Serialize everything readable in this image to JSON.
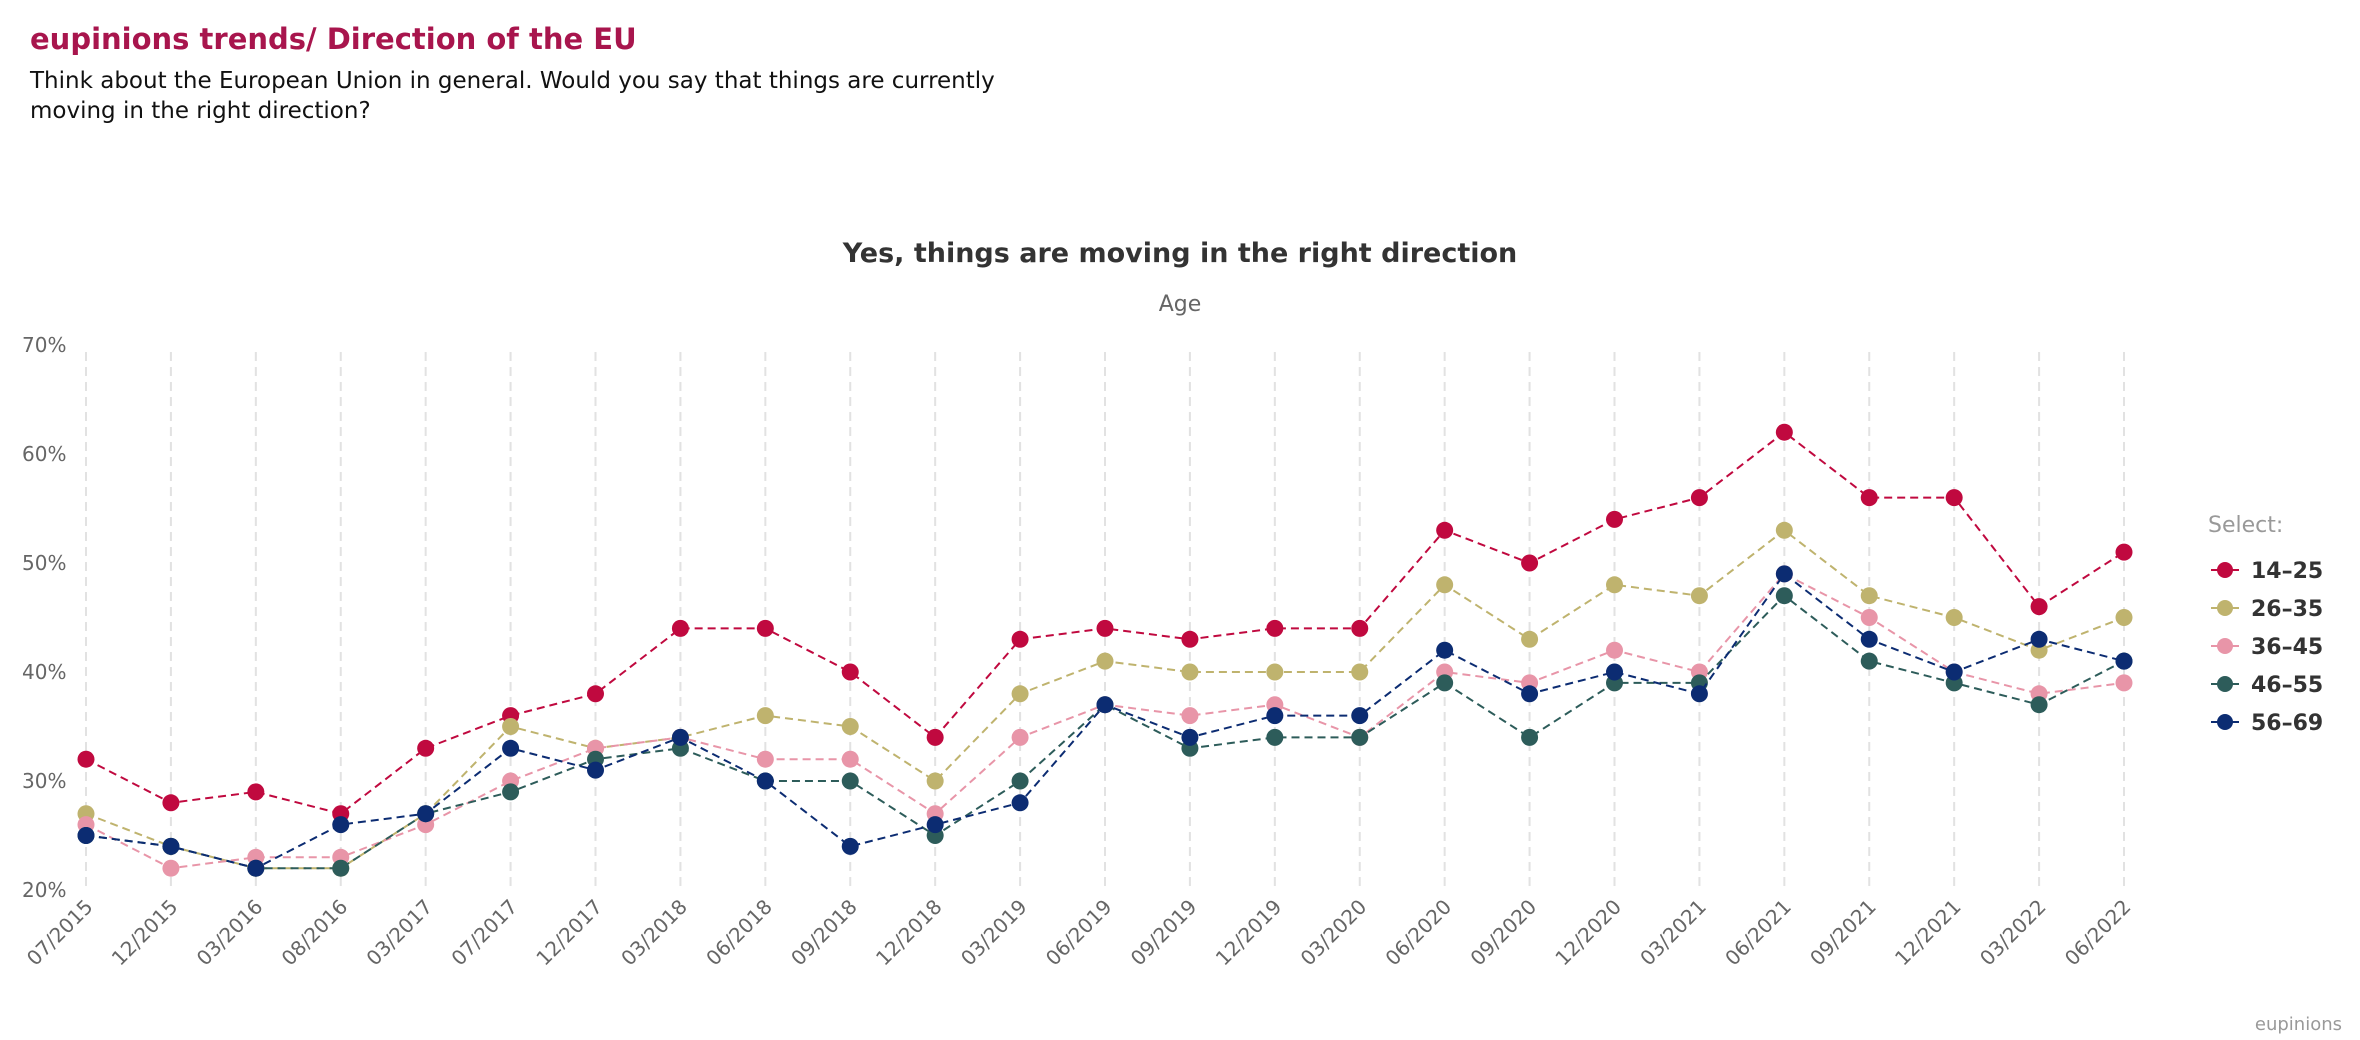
{
  "header": {
    "title": "eupinions trends/ Direction of the EU",
    "question": "Think about the European Union in general. Would you say that things are currently moving in the right direction?"
  },
  "credit": "eupinions",
  "chart_data": {
    "type": "line",
    "title": "Yes, things are moving in the right direction",
    "subtitle": "Age",
    "legend_title": "Select:",
    "legend_position": "right",
    "ylim": [
      20,
      70
    ],
    "yticks": [
      20,
      30,
      40,
      50,
      60,
      70
    ],
    "ytick_labels": [
      "20%",
      "30%",
      "40%",
      "50%",
      "60%",
      "70%"
    ],
    "grid": "vertical dashed",
    "categories": [
      "07/2015",
      "12/2015",
      "03/2016",
      "08/2016",
      "03/2017",
      "07/2017",
      "12/2017",
      "03/2018",
      "06/2018",
      "09/2018",
      "12/2018",
      "03/2019",
      "06/2019",
      "09/2019",
      "12/2019",
      "03/2020",
      "06/2020",
      "09/2020",
      "12/2020",
      "03/2021",
      "06/2021",
      "09/2021",
      "12/2021",
      "03/2022",
      "06/2022"
    ],
    "series": [
      {
        "name": "14–25",
        "color": "#c0093f",
        "values": [
          32,
          28,
          29,
          27,
          33,
          36,
          38,
          44,
          44,
          40,
          34,
          43,
          44,
          43,
          44,
          44,
          53,
          50,
          54,
          56,
          62,
          56,
          56,
          46,
          51
        ]
      },
      {
        "name": "26–35",
        "color": "#bfb36e",
        "values": [
          27,
          24,
          22,
          22,
          27,
          35,
          33,
          34,
          36,
          35,
          30,
          38,
          41,
          40,
          40,
          40,
          48,
          43,
          48,
          47,
          53,
          47,
          45,
          42,
          45
        ]
      },
      {
        "name": "36–45",
        "color": "#e895a8",
        "values": [
          26,
          22,
          23,
          23,
          26,
          30,
          33,
          34,
          32,
          32,
          27,
          34,
          37,
          36,
          37,
          34,
          40,
          39,
          42,
          40,
          49,
          45,
          40,
          38,
          39
        ]
      },
      {
        "name": "46–55",
        "color": "#2d5c5a",
        "values": [
          25,
          24,
          22,
          22,
          27,
          29,
          32,
          33,
          30,
          30,
          25,
          30,
          37,
          33,
          34,
          34,
          39,
          34,
          39,
          39,
          47,
          41,
          39,
          37,
          41
        ]
      },
      {
        "name": "56–69",
        "color": "#0c2c72",
        "values": [
          25,
          24,
          22,
          26,
          27,
          33,
          31,
          34,
          30,
          24,
          26,
          28,
          37,
          34,
          36,
          36,
          42,
          38,
          40,
          38,
          49,
          43,
          40,
          43,
          41
        ]
      }
    ]
  }
}
